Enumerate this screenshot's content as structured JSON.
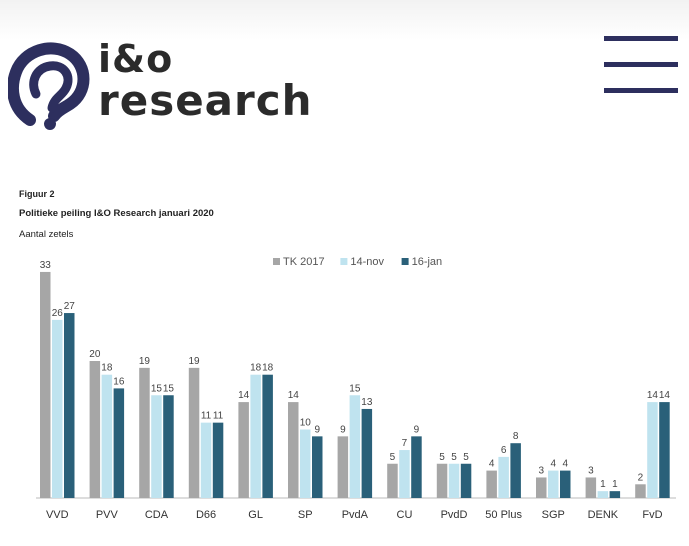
{
  "brand": {
    "line1": "i&o",
    "line2": "research"
  },
  "menu": {
    "icon": "hamburger-menu-icon"
  },
  "figure": {
    "label": "Figuur 2",
    "title": "Politieke peiling I&O Research januari 2020",
    "subtitle": "Aantal zetels"
  },
  "colors": {
    "brand_navy": "#2d2f5e",
    "tk2017": "#a6a6a6",
    "nov14": "#bfe3ef",
    "jan16": "#2a6079"
  },
  "chart_data": {
    "type": "bar",
    "categories": [
      "VVD",
      "PVV",
      "CDA",
      "D66",
      "GL",
      "SP",
      "PvdA",
      "CU",
      "PvdD",
      "50 Plus",
      "SGP",
      "DENK",
      "FvD"
    ],
    "series": [
      {
        "name": "TK 2017",
        "color": "#a6a6a6",
        "values": [
          33,
          20,
          19,
          19,
          14,
          14,
          9,
          5,
          5,
          4,
          3,
          3,
          2
        ]
      },
      {
        "name": "14-nov",
        "color": "#bfe3ef",
        "values": [
          26,
          18,
          15,
          11,
          18,
          10,
          15,
          7,
          5,
          6,
          4,
          1,
          14
        ]
      },
      {
        "name": "16-jan",
        "color": "#2a6079",
        "values": [
          27,
          16,
          15,
          11,
          18,
          9,
          13,
          9,
          5,
          8,
          4,
          1,
          14
        ]
      }
    ],
    "ylabel": "Aantal zetels",
    "ylim": [
      0,
      33
    ],
    "grid": false,
    "legend": "top-center",
    "data_labels": true
  }
}
